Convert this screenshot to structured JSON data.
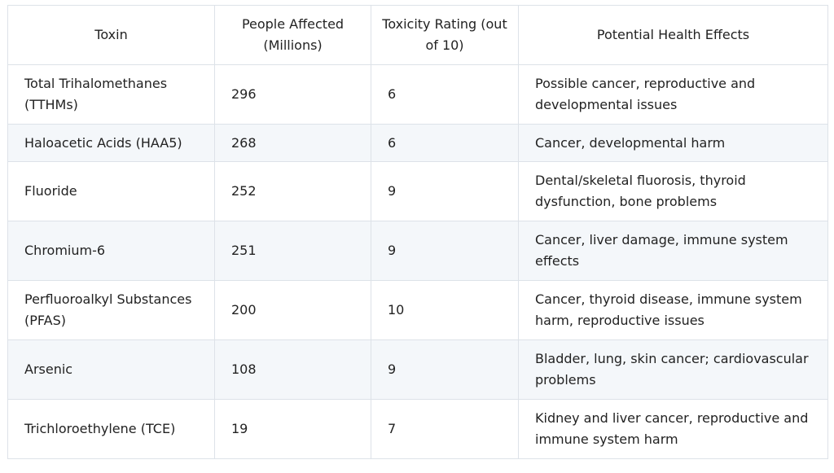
{
  "table": {
    "headers": [
      "Toxin",
      "People Affected (Millions)",
      "Toxicity Rating (out of 10)",
      "Potential Health Effects"
    ],
    "rows": [
      {
        "toxin": "Total Trihalomethanes (TTHMs)",
        "people": "296",
        "rating": "6",
        "effects": "Possible cancer, reproductive and developmental issues"
      },
      {
        "toxin": "Haloacetic Acids (HAA5)",
        "people": "268",
        "rating": "6",
        "effects": "Cancer, developmental harm"
      },
      {
        "toxin": "Fluoride",
        "people": "252",
        "rating": "9",
        "effects": "Dental/skeletal fluorosis, thyroid dysfunction, bone problems"
      },
      {
        "toxin": "Chromium-6",
        "people": "251",
        "rating": "9",
        "effects": "Cancer, liver damage, immune system effects"
      },
      {
        "toxin": "Perfluoroalkyl Substances (PFAS)",
        "people": "200",
        "rating": "10",
        "effects": "Cancer, thyroid disease, immune system harm, reproductive issues"
      },
      {
        "toxin": "Arsenic",
        "people": "108",
        "rating": "9",
        "effects": "Bladder, lung, skin cancer; cardiovascular problems"
      },
      {
        "toxin": "Trichloroethylene (TCE)",
        "people": "19",
        "rating": "7",
        "effects": "Kidney and liver cancer, reproductive and immune system harm"
      }
    ]
  }
}
